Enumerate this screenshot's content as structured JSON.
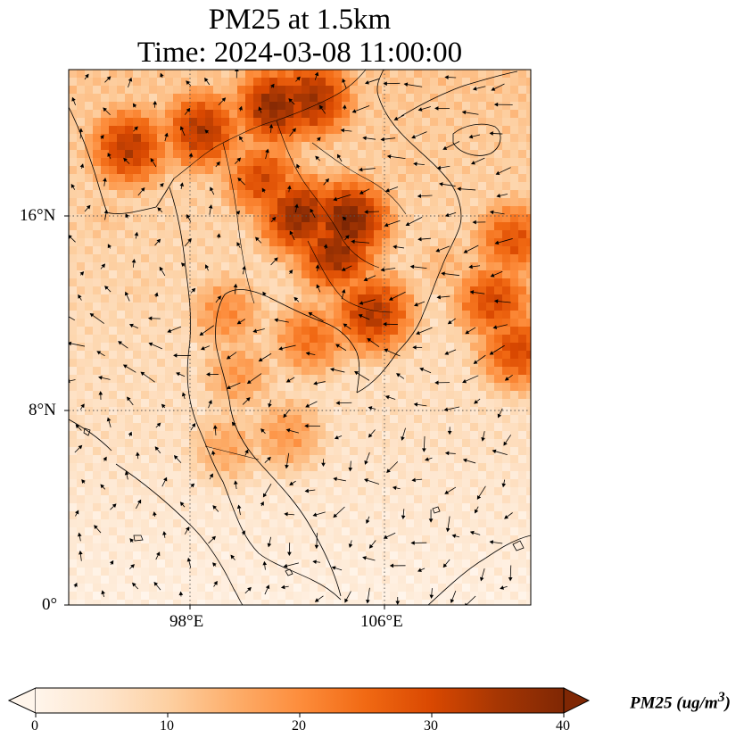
{
  "header": {
    "title_line1": "PM25 at 1.5km",
    "title_line2": "Time: 2024-03-08 11:00:00"
  },
  "axes": {
    "lat_ticks": [
      "16°N",
      "8°N",
      "0°"
    ],
    "lon_ticks": [
      "98°E",
      "106°E"
    ]
  },
  "colorbar": {
    "label_text": "PM25 (ug/m",
    "label_superscript": "3",
    "label_close": ")",
    "ticks": [
      "0",
      "10",
      "20",
      "30",
      "40"
    ],
    "range": [
      0,
      40
    ],
    "extend": "both",
    "colormap": [
      "#fff5eb",
      "#fee6ce",
      "#fdd0a2",
      "#fdae6b",
      "#fd8d3c",
      "#f16913",
      "#d94801",
      "#a63603",
      "#7f2704"
    ]
  },
  "map": {
    "region_lon": [
      93,
      112
    ],
    "region_lat": [
      0,
      22
    ],
    "gridline_lons": [
      98,
      106
    ],
    "gridline_lats": [
      0,
      8,
      16
    ],
    "hotspots": [
      {
        "lon": 102.5,
        "lat": 16.0,
        "value": 38
      },
      {
        "lon": 104.5,
        "lat": 15.8,
        "value": 40
      },
      {
        "lon": 104.0,
        "lat": 14.5,
        "value": 37
      },
      {
        "lon": 101.5,
        "lat": 20.5,
        "value": 38
      },
      {
        "lon": 103.0,
        "lat": 20.8,
        "value": 36
      },
      {
        "lon": 98.5,
        "lat": 19.5,
        "value": 34
      },
      {
        "lon": 95.5,
        "lat": 18.8,
        "value": 33
      },
      {
        "lon": 105.5,
        "lat": 12.0,
        "value": 34
      },
      {
        "lon": 101.0,
        "lat": 17.5,
        "value": 30
      },
      {
        "lon": 110.5,
        "lat": 12.5,
        "value": 30
      },
      {
        "lon": 111.5,
        "lat": 10.5,
        "value": 30
      },
      {
        "lon": 111.3,
        "lat": 15.0,
        "value": 28
      },
      {
        "lon": 103.0,
        "lat": 11.0,
        "value": 24
      },
      {
        "lon": 100.0,
        "lat": 9.5,
        "value": 18
      },
      {
        "lon": 99.5,
        "lat": 12.0,
        "value": 20
      },
      {
        "lon": 102.0,
        "lat": 7.0,
        "value": 18
      },
      {
        "lon": 99.5,
        "lat": 6.5,
        "value": 16
      },
      {
        "lon": 107.0,
        "lat": 18.0,
        "value": 12
      },
      {
        "lon": 108.5,
        "lat": 14.0,
        "value": 14
      },
      {
        "lon": 96.0,
        "lat": 13.0,
        "value": 10
      },
      {
        "lon": 94.5,
        "lat": 16.0,
        "value": 12
      }
    ],
    "wind_vectors": "black arrows showing wind at 1.5km"
  }
}
